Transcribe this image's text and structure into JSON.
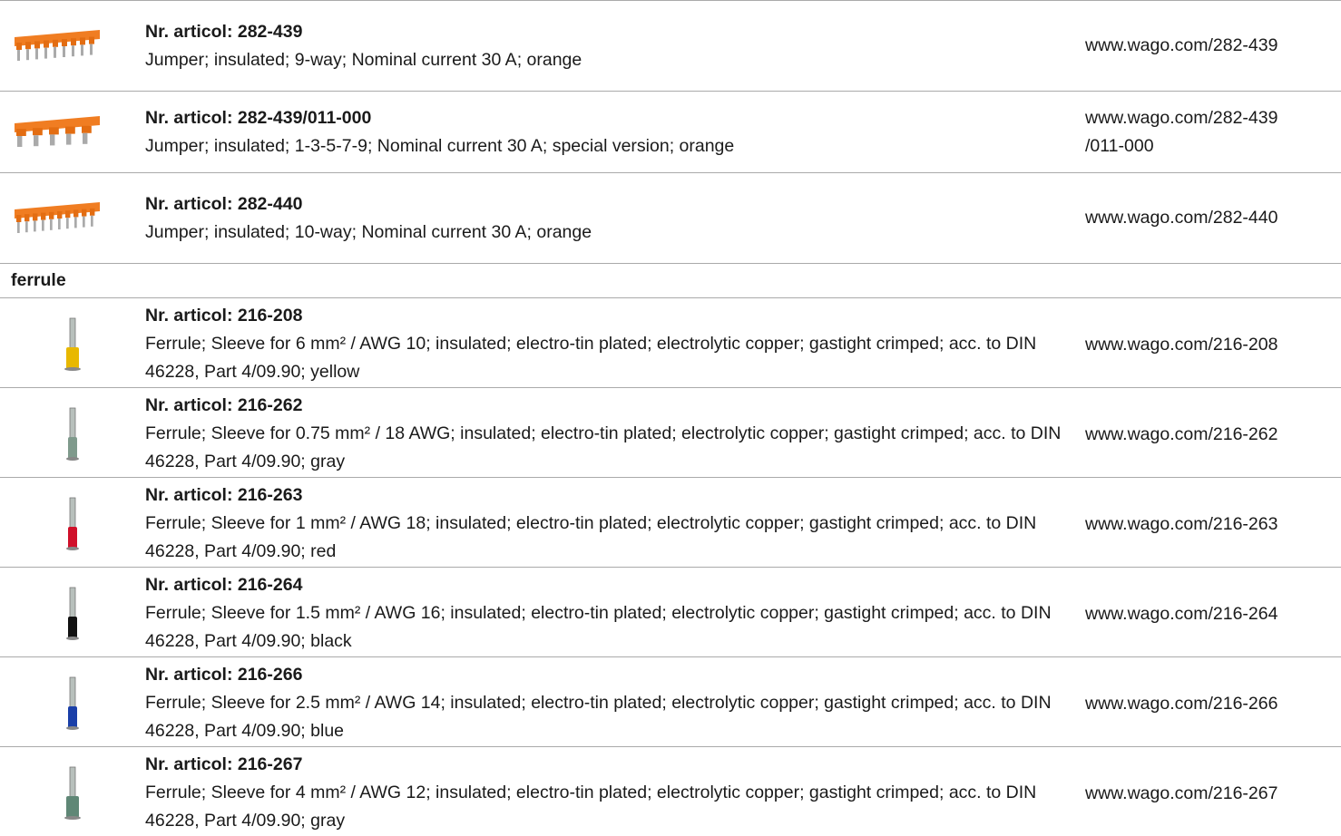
{
  "groups": [
    {
      "heading": null,
      "items": [
        {
          "title": "Nr. articol: 282-439",
          "description": "Jumper; insulated; 9-way; Nominal current 30 A; orange",
          "url_lines": [
            "www.wago.com/282-439"
          ]
        },
        {
          "title": "Nr. articol: 282-439/011-000",
          "description": "Jumper; insulated; 1-3-5-7-9; Nominal current 30 A; special version; orange",
          "url_lines": [
            "www.wago.com/282-439",
            "/011-000"
          ]
        },
        {
          "title": "Nr. articol: 282-440",
          "description": "Jumper; insulated; 10-way; Nominal current 30 A; orange",
          "url_lines": [
            "www.wago.com/282-440"
          ]
        }
      ]
    },
    {
      "heading": "ferrule",
      "items": [
        {
          "title": "Nr. articol: 216-208",
          "description": "Ferrule; Sleeve for 6 mm² / AWG 10; insulated; electro-tin plated; electrolytic copper; gastight crimped; acc. to DIN 46228, Part 4/09.90; yellow",
          "url_lines": [
            "www.wago.com/216-208"
          ]
        },
        {
          "title": "Nr. articol: 216-262",
          "description": "Ferrule; Sleeve for 0.75 mm² / 18 AWG; insulated; electro-tin plated; electrolytic copper; gastight crimped; acc. to DIN 46228, Part 4/09.90; gray",
          "url_lines": [
            "www.wago.com/216-262"
          ]
        },
        {
          "title": "Nr. articol: 216-263",
          "description": "Ferrule; Sleeve for 1 mm² / AWG 18; insulated; electro-tin plated; electrolytic copper; gastight crimped; acc. to DIN 46228, Part 4/09.90; red",
          "url_lines": [
            "www.wago.com/216-263"
          ]
        },
        {
          "title": "Nr. articol: 216-264",
          "description": "Ferrule; Sleeve for 1.5 mm² / AWG 16; insulated; electro-tin plated; electrolytic copper; gastight crimped; acc. to DIN 46228, Part 4/09.90; black",
          "url_lines": [
            "www.wago.com/216-264"
          ]
        },
        {
          "title": "Nr. articol: 216-266",
          "description": "Ferrule; Sleeve for 2.5 mm² / AWG 14; insulated; electro-tin plated; electrolytic copper; gastight crimped; acc. to DIN 46228, Part 4/09.90; blue",
          "url_lines": [
            "www.wago.com/216-266"
          ]
        },
        {
          "title": "Nr. articol: 216-267",
          "description": "Ferrule; Sleeve for 4 mm² / AWG 12; insulated; electro-tin plated; electrolytic copper; gastight crimped; acc. to DIN 46228, Part 4/09.90; gray",
          "url_lines": [
            "www.wago.com/216-267"
          ]
        }
      ]
    }
  ]
}
